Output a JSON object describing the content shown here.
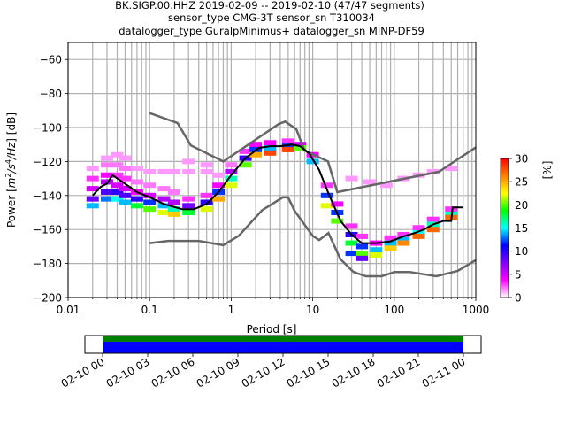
{
  "chart_data": {
    "type": "heatmap",
    "title_lines": [
      "BK.SIGP.00.HHZ   2019-02-09 -- 2019-02-10  (47/47 segments)",
      "sensor_type CMG-3T sensor_sn T310034",
      "datalogger_type GuralpMinimus+ datalogger_sn MINP-DF59"
    ],
    "xlabel": "Period [s]",
    "ylabel": "Power [m2/s4/Hz] [dB]",
    "ylabel_parts": {
      "pre": "Power [",
      "m": "m",
      "e1": "2",
      "s": "/s",
      "e2": "4",
      "hz": "/Hz",
      "post": "] [dB]"
    },
    "xscale": "log",
    "xlim": [
      0.01,
      1000
    ],
    "ylim": [
      -200,
      -50
    ],
    "x_ticks": [
      {
        "value": 0.01,
        "label": "0.01"
      },
      {
        "value": 0.1,
        "label": "0.1"
      },
      {
        "value": 1,
        "label": "1"
      },
      {
        "value": 10,
        "label": "10"
      },
      {
        "value": 100,
        "label": "100"
      },
      {
        "value": 1000,
        "label": "1000"
      }
    ],
    "y_ticks": [
      {
        "value": -60,
        "label": "−60"
      },
      {
        "value": -80,
        "label": "−80"
      },
      {
        "value": -100,
        "label": "−100"
      },
      {
        "value": -120,
        "label": "−120"
      },
      {
        "value": -140,
        "label": "−140"
      },
      {
        "value": -160,
        "label": "−160"
      },
      {
        "value": -180,
        "label": "−180"
      },
      {
        "value": -200,
        "label": "−200"
      }
    ],
    "grid": true,
    "colorbar": {
      "label": "[%]",
      "range": [
        0,
        30
      ],
      "ticks": [
        {
          "value": 0,
          "label": "0"
        },
        {
          "value": 5,
          "label": "5"
        },
        {
          "value": 10,
          "label": "10"
        },
        {
          "value": 15,
          "label": "15"
        },
        {
          "value": 20,
          "label": "20"
        },
        {
          "value": 25,
          "label": "25"
        },
        {
          "value": 30,
          "label": "30"
        }
      ],
      "colormap": [
        "#ffffff",
        "#ff00ff",
        "#8000ff",
        "#0000ff",
        "#00ffff",
        "#00ff00",
        "#ffff00",
        "#ff8000",
        "#ff0000"
      ]
    },
    "noise_models": {
      "color": "#666666",
      "nhnm": [
        [
          0.1,
          -91.5
        ],
        [
          0.22,
          -97.4
        ],
        [
          0.32,
          -110.5
        ],
        [
          0.8,
          -120
        ],
        [
          3.8,
          -98
        ],
        [
          4.6,
          -96.5
        ],
        [
          6.3,
          -101
        ],
        [
          7.9,
          -113.5
        ],
        [
          15.4,
          -120
        ],
        [
          20,
          -138
        ],
        [
          354.8,
          -126
        ],
        [
          10000,
          -80
        ]
      ],
      "nlnm": [
        [
          0.1,
          -168
        ],
        [
          0.17,
          -166.7
        ],
        [
          0.4,
          -166.7
        ],
        [
          0.8,
          -169.2
        ],
        [
          1.24,
          -163.7
        ],
        [
          2.4,
          -148.6
        ],
        [
          4.3,
          -141.1
        ],
        [
          5,
          -141.1
        ],
        [
          6,
          -149
        ],
        [
          10,
          -163.8
        ],
        [
          12,
          -166.2
        ],
        [
          15.6,
          -162.1
        ],
        [
          21.9,
          -177.5
        ],
        [
          31.6,
          -185
        ],
        [
          45,
          -187.5
        ],
        [
          70,
          -187.5
        ],
        [
          101,
          -185
        ],
        [
          154,
          -185
        ],
        [
          328,
          -187.5
        ],
        [
          600,
          -184.4
        ],
        [
          1000,
          -178
        ]
      ]
    },
    "median_line": {
      "color": "#000000",
      "points": [
        [
          0.02,
          -140
        ],
        [
          0.025,
          -135
        ],
        [
          0.03,
          -133
        ],
        [
          0.035,
          -128
        ],
        [
          0.05,
          -133
        ],
        [
          0.07,
          -138
        ],
        [
          0.1,
          -141
        ],
        [
          0.15,
          -145
        ],
        [
          0.25,
          -148
        ],
        [
          0.35,
          -148
        ],
        [
          0.5,
          -145
        ],
        [
          0.7,
          -138
        ],
        [
          1,
          -128
        ],
        [
          1.5,
          -118
        ],
        [
          2.2,
          -112
        ],
        [
          3,
          -111
        ],
        [
          4,
          -111
        ],
        [
          5.5,
          -110
        ],
        [
          7,
          -111
        ],
        [
          9,
          -115
        ],
        [
          12,
          -125
        ],
        [
          16,
          -140
        ],
        [
          22,
          -155
        ],
        [
          30,
          -163
        ],
        [
          40,
          -168
        ],
        [
          60,
          -168
        ],
        [
          90,
          -167
        ],
        [
          130,
          -164
        ],
        [
          180,
          -162
        ],
        [
          230,
          -160
        ],
        [
          300,
          -157
        ],
        [
          400,
          -155
        ],
        [
          500,
          -155
        ],
        [
          520,
          -147
        ],
        [
          700,
          -147
        ]
      ]
    },
    "pdf_cells": [
      [
        0.02,
        -124,
        1
      ],
      [
        0.02,
        -130,
        3
      ],
      [
        0.02,
        -136,
        5
      ],
      [
        0.02,
        -142,
        8
      ],
      [
        0.02,
        -146,
        14
      ],
      [
        0.03,
        -118,
        1
      ],
      [
        0.03,
        -122,
        2
      ],
      [
        0.03,
        -128,
        4
      ],
      [
        0.03,
        -132,
        6
      ],
      [
        0.03,
        -138,
        9
      ],
      [
        0.03,
        -142,
        13
      ],
      [
        0.04,
        -116,
        1
      ],
      [
        0.04,
        -122,
        2
      ],
      [
        0.04,
        -128,
        3
      ],
      [
        0.04,
        -134,
        5
      ],
      [
        0.04,
        -138,
        10
      ],
      [
        0.04,
        -142,
        15
      ],
      [
        0.05,
        -118,
        1
      ],
      [
        0.05,
        -124,
        2
      ],
      [
        0.05,
        -130,
        3
      ],
      [
        0.05,
        -136,
        5
      ],
      [
        0.05,
        -140,
        9
      ],
      [
        0.05,
        -144,
        14
      ],
      [
        0.07,
        -124,
        1
      ],
      [
        0.07,
        -132,
        2
      ],
      [
        0.07,
        -138,
        4
      ],
      [
        0.07,
        -142,
        10
      ],
      [
        0.07,
        -146,
        18
      ],
      [
        0.1,
        -126,
        1
      ],
      [
        0.1,
        -134,
        2
      ],
      [
        0.1,
        -140,
        5
      ],
      [
        0.1,
        -144,
        12
      ],
      [
        0.1,
        -148,
        20
      ],
      [
        0.15,
        -126,
        1
      ],
      [
        0.15,
        -136,
        2
      ],
      [
        0.15,
        -142,
        6
      ],
      [
        0.15,
        -146,
        14
      ],
      [
        0.15,
        -150,
        22
      ],
      [
        0.2,
        -126,
        1
      ],
      [
        0.2,
        -138,
        2
      ],
      [
        0.2,
        -144,
        6
      ],
      [
        0.2,
        -148,
        16
      ],
      [
        0.2,
        -151,
        24
      ],
      [
        0.3,
        -126,
        1
      ],
      [
        0.3,
        -142,
        3
      ],
      [
        0.3,
        -146,
        8
      ],
      [
        0.3,
        -150,
        18
      ],
      [
        0.5,
        -126,
        1
      ],
      [
        0.5,
        -140,
        3
      ],
      [
        0.5,
        -144,
        10
      ],
      [
        0.5,
        -148,
        22
      ],
      [
        0.7,
        -128,
        1
      ],
      [
        0.7,
        -134,
        4
      ],
      [
        0.7,
        -138,
        12
      ],
      [
        0.7,
        -142,
        25
      ],
      [
        1,
        -122,
        2
      ],
      [
        1,
        -126,
        6
      ],
      [
        1,
        -130,
        16
      ],
      [
        1,
        -134,
        22
      ],
      [
        1.5,
        -114,
        3
      ],
      [
        1.5,
        -118,
        10
      ],
      [
        1.5,
        -122,
        20
      ],
      [
        2,
        -110,
        4
      ],
      [
        2,
        -113,
        12
      ],
      [
        2,
        -116,
        25
      ],
      [
        3,
        -109,
        4
      ],
      [
        3,
        -112,
        14
      ],
      [
        3,
        -115,
        28
      ],
      [
        5,
        -108,
        3
      ],
      [
        5,
        -111,
        12
      ],
      [
        5,
        -113,
        28
      ],
      [
        7,
        -110,
        5
      ],
      [
        7,
        -112,
        20
      ],
      [
        10,
        -116,
        4
      ],
      [
        10,
        -120,
        14
      ],
      [
        15,
        -134,
        3
      ],
      [
        15,
        -140,
        12
      ],
      [
        15,
        -146,
        22
      ],
      [
        20,
        -145,
        4
      ],
      [
        20,
        -150,
        12
      ],
      [
        20,
        -155,
        20
      ],
      [
        30,
        -158,
        3
      ],
      [
        30,
        -163,
        10
      ],
      [
        30,
        -168,
        18
      ],
      [
        30,
        -174,
        12
      ],
      [
        40,
        -164,
        3
      ],
      [
        40,
        -170,
        12
      ],
      [
        40,
        -174,
        20
      ],
      [
        40,
        -177,
        8
      ],
      [
        60,
        -168,
        4
      ],
      [
        60,
        -172,
        14
      ],
      [
        60,
        -175,
        22
      ],
      [
        90,
        -165,
        3
      ],
      [
        90,
        -168,
        14
      ],
      [
        90,
        -171,
        24
      ],
      [
        130,
        -163,
        3
      ],
      [
        130,
        -166,
        14
      ],
      [
        130,
        -168,
        26
      ],
      [
        200,
        -159,
        3
      ],
      [
        200,
        -162,
        15
      ],
      [
        200,
        -164,
        27
      ],
      [
        300,
        -154,
        3
      ],
      [
        300,
        -157,
        16
      ],
      [
        300,
        -160,
        27
      ],
      [
        500,
        -148,
        3
      ],
      [
        500,
        -151,
        16
      ],
      [
        500,
        -153,
        27
      ],
      [
        30,
        -130,
        1
      ],
      [
        50,
        -132,
        1
      ],
      [
        80,
        -134,
        1
      ],
      [
        130,
        -130,
        1
      ],
      [
        200,
        -128,
        1
      ],
      [
        300,
        -126,
        1
      ],
      [
        500,
        -124,
        1
      ],
      [
        0.3,
        -120,
        1
      ],
      [
        0.5,
        -122,
        1
      ]
    ]
  },
  "timeline": {
    "tick_labels": [
      "02-10 00",
      "02-10 03",
      "02-10 06",
      "02-10 09",
      "02-10 12",
      "02-10 15",
      "02-10 18",
      "02-10 21",
      "02-11 00"
    ],
    "coverage_colors": [
      "#008000",
      "#0000ff"
    ]
  }
}
